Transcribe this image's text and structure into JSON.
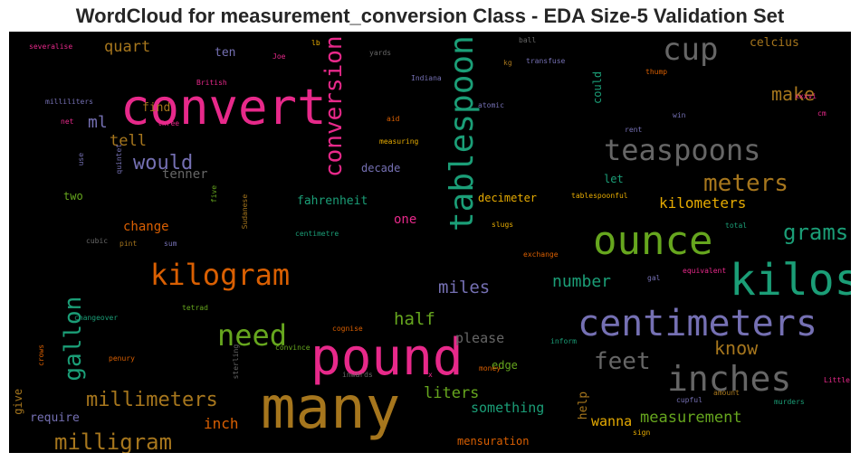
{
  "chart_data": {
    "type": "wordcloud",
    "title": "WordCloud for measurement_conversion Class - EDA Size-5 Validation Set",
    "background": "#000000",
    "palette": [
      "#1b9e77",
      "#d95f02",
      "#7570b3",
      "#e7298a",
      "#66a61e",
      "#e6ab02",
      "#a6761d",
      "#666666"
    ],
    "words": [
      {
        "text": "many",
        "color": "#a6761d"
      },
      {
        "text": "convert",
        "color": "#e7298a"
      },
      {
        "text": "pound",
        "color": "#e7298a"
      },
      {
        "text": "kilos",
        "color": "#1b9e77"
      },
      {
        "text": "ounce",
        "color": "#66a61e"
      },
      {
        "text": "centimeters",
        "color": "#7570b3"
      },
      {
        "text": "tablespoon",
        "color": "#1b9e77"
      },
      {
        "text": "inches",
        "color": "#666666"
      },
      {
        "text": "kilogram",
        "color": "#d95f02"
      },
      {
        "text": "cup",
        "color": "#666666"
      },
      {
        "text": "teaspoons",
        "color": "#666666"
      },
      {
        "text": "conversion",
        "color": "#e7298a"
      },
      {
        "text": "need",
        "color": "#66a61e"
      },
      {
        "text": "gallon",
        "color": "#1b9e77"
      },
      {
        "text": "meters",
        "color": "#a6761d"
      },
      {
        "text": "feet",
        "color": "#666666"
      },
      {
        "text": "milligram",
        "color": "#a6761d"
      },
      {
        "text": "millimeters",
        "color": "#a6761d"
      },
      {
        "text": "grams",
        "color": "#1b9e77"
      },
      {
        "text": "would",
        "color": "#7570b3"
      },
      {
        "text": "make",
        "color": "#a6761d"
      },
      {
        "text": "know",
        "color": "#a6761d"
      },
      {
        "text": "half",
        "color": "#66a61e"
      },
      {
        "text": "miles",
        "color": "#7570b3"
      },
      {
        "text": "number",
        "color": "#1b9e77"
      },
      {
        "text": "measurement",
        "color": "#66a61e"
      },
      {
        "text": "kilometers",
        "color": "#e6ab02"
      },
      {
        "text": "liters",
        "color": "#66a61e"
      },
      {
        "text": "ml",
        "color": "#7570b3"
      },
      {
        "text": "tell",
        "color": "#a6761d"
      },
      {
        "text": "quart",
        "color": "#a6761d"
      },
      {
        "text": "inch",
        "color": "#d95f02"
      },
      {
        "text": "something",
        "color": "#1b9e77"
      },
      {
        "text": "wanna",
        "color": "#e6ab02"
      },
      {
        "text": "please",
        "color": "#666666"
      },
      {
        "text": "change",
        "color": "#d95f02"
      },
      {
        "text": "tenner",
        "color": "#666666"
      },
      {
        "text": "find",
        "color": "#a6761d"
      },
      {
        "text": "ten",
        "color": "#7570b3"
      },
      {
        "text": "one",
        "color": "#e7298a"
      },
      {
        "text": "help",
        "color": "#a6761d"
      },
      {
        "text": "mensuration",
        "color": "#d95f02"
      },
      {
        "text": "give",
        "color": "#a6761d"
      },
      {
        "text": "require",
        "color": "#7570b3"
      },
      {
        "text": "celcius",
        "color": "#a6761d"
      },
      {
        "text": "fahrenheit",
        "color": "#1b9e77"
      },
      {
        "text": "decade",
        "color": "#7570b3"
      },
      {
        "text": "decimeter",
        "color": "#e6ab02"
      },
      {
        "text": "let",
        "color": "#1b9e77"
      },
      {
        "text": "edge",
        "color": "#66a61e"
      },
      {
        "text": "two",
        "color": "#66a61e"
      },
      {
        "text": "could",
        "color": "#1b9e77"
      },
      {
        "text": "British",
        "color": "#e7298a"
      },
      {
        "text": "Joe",
        "color": "#e7298a"
      },
      {
        "text": "lb",
        "color": "#e6ab02"
      },
      {
        "text": "yards",
        "color": "#666666"
      },
      {
        "text": "ball",
        "color": "#666666"
      },
      {
        "text": "kg",
        "color": "#a6761d"
      },
      {
        "text": "transfuse",
        "color": "#7570b3"
      },
      {
        "text": "Indiana",
        "color": "#7570b3"
      },
      {
        "text": "atomic",
        "color": "#7570b3"
      },
      {
        "text": "thump",
        "color": "#d95f02"
      },
      {
        "text": "xxxvi",
        "color": "#e7298a"
      },
      {
        "text": "cm",
        "color": "#e7298a"
      },
      {
        "text": "rent",
        "color": "#7570b3"
      },
      {
        "text": "win",
        "color": "#7570b3"
      },
      {
        "text": "aid",
        "color": "#d95f02"
      },
      {
        "text": "measuring",
        "color": "#e6ab02"
      },
      {
        "text": "severalise",
        "color": "#e7298a"
      },
      {
        "text": "milliliters",
        "color": "#7570b3"
      },
      {
        "text": "net",
        "color": "#e7298a"
      },
      {
        "text": "three",
        "color": "#e7298a"
      },
      {
        "text": "use",
        "color": "#7570b3"
      },
      {
        "text": "quintet",
        "color": "#7570b3"
      },
      {
        "text": "five",
        "color": "#66a61e"
      },
      {
        "text": "Sudanese",
        "color": "#a6761d"
      },
      {
        "text": "cubic",
        "color": "#666666"
      },
      {
        "text": "pint",
        "color": "#a6761d"
      },
      {
        "text": "sum",
        "color": "#7570b3"
      },
      {
        "text": "centimetre",
        "color": "#1b9e77"
      },
      {
        "text": "slugs",
        "color": "#e6ab02"
      },
      {
        "text": "tablespoonful",
        "color": "#e6ab02"
      },
      {
        "text": "total",
        "color": "#1b9e77"
      },
      {
        "text": "exchange",
        "color": "#d95f02"
      },
      {
        "text": "equivalent",
        "color": "#e7298a"
      },
      {
        "text": "gal",
        "color": "#7570b3"
      },
      {
        "text": "changeover",
        "color": "#1b9e77"
      },
      {
        "text": "tetrad",
        "color": "#66a61e"
      },
      {
        "text": "crows",
        "color": "#d95f02"
      },
      {
        "text": "penury",
        "color": "#d95f02"
      },
      {
        "text": "cognise",
        "color": "#d95f02"
      },
      {
        "text": "convince",
        "color": "#66a61e"
      },
      {
        "text": "sterling",
        "color": "#666666"
      },
      {
        "text": "inwards",
        "color": "#666666"
      },
      {
        "text": "inform",
        "color": "#1b9e77"
      },
      {
        "text": "x",
        "color": "#e7298a"
      },
      {
        "text": "money",
        "color": "#d95f02"
      },
      {
        "text": "Little",
        "color": "#e7298a"
      },
      {
        "text": "amount",
        "color": "#a6761d"
      },
      {
        "text": "cupful",
        "color": "#7570b3"
      },
      {
        "text": "sign",
        "color": "#e6ab02"
      },
      {
        "text": "murders",
        "color": "#1b9e77"
      }
    ]
  }
}
